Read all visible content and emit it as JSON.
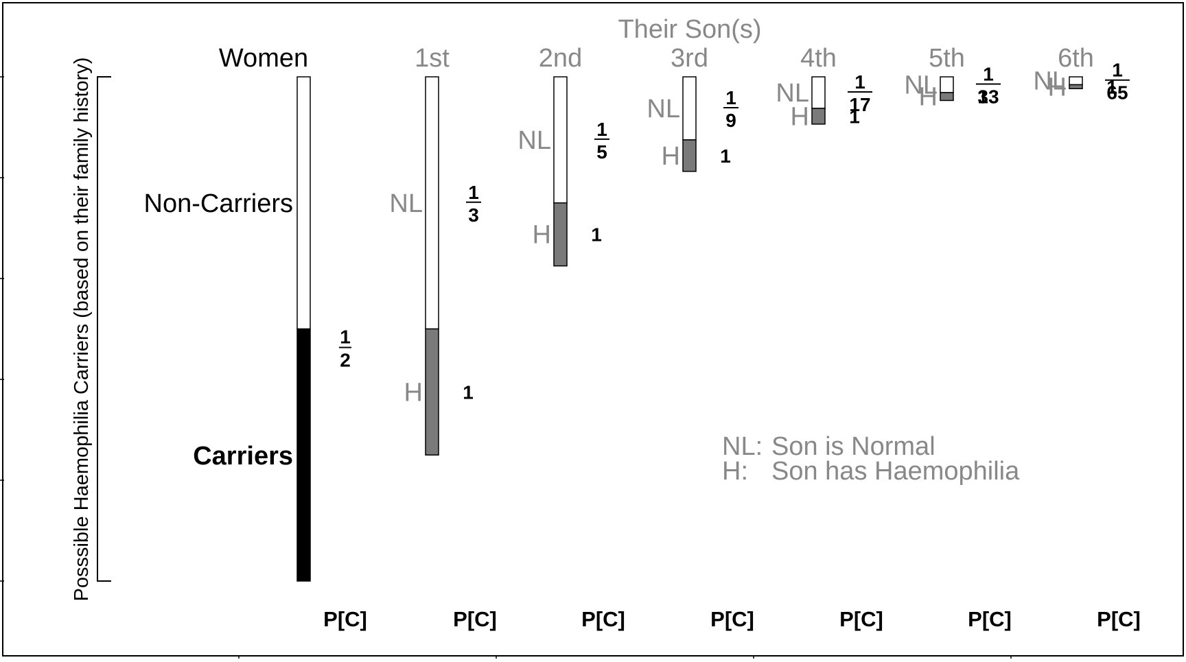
{
  "title": "Their Son(s)",
  "y_axis_label": "Posssible Haemophilia Carriers (based on their family history)",
  "women": {
    "label": "Women",
    "non_carriers_label": "Non-Carriers",
    "carriers_label": "Carriers",
    "carrier_fraction": 0.5,
    "carrier_fraction_label": {
      "num": "1",
      "den": "2"
    },
    "pc_label": "P[C]"
  },
  "sons": [
    {
      "label": "1st",
      "nl_fraction": 0.5,
      "h_fraction": 0.25,
      "pc": {
        "num": "1",
        "den": "3"
      },
      "h_pc": "1",
      "pc_label": "P[C]"
    },
    {
      "label": "2nd",
      "nl_fraction": 0.25,
      "h_fraction": 0.125,
      "pc": {
        "num": "1",
        "den": "5"
      },
      "h_pc": "1",
      "pc_label": "P[C]"
    },
    {
      "label": "3rd",
      "nl_fraction": 0.125,
      "h_fraction": 0.0625,
      "pc": {
        "num": "1",
        "den": "9"
      },
      "h_pc": "1",
      "pc_label": "P[C]"
    },
    {
      "label": "4th",
      "nl_fraction": 0.0625,
      "h_fraction": 0.03125,
      "pc": {
        "num": "1",
        "den": "17"
      },
      "h_pc": "1",
      "pc_label": "P[C]"
    },
    {
      "label": "5th",
      "nl_fraction": 0.03125,
      "h_fraction": 0.015625,
      "pc": {
        "num": "1",
        "den": "33"
      },
      "h_pc": "1",
      "pc_label": "P[C]"
    },
    {
      "label": "6th",
      "nl_fraction": 0.015625,
      "h_fraction": 0.0078125,
      "pc": {
        "num": "1",
        "den": "65"
      },
      "h_pc": "1",
      "pc_label": "P[C]"
    }
  ],
  "nl_label": "NL",
  "h_label": "H",
  "legend": {
    "nl_key": "NL:",
    "nl_text": "Son is Normal",
    "h_key": "H:",
    "h_text": "Son has Haemophilia"
  },
  "colors": {
    "carrier": "#000000",
    "haemophilia": "#7a7a7a",
    "normal": "#ffffff",
    "muted_text": "#888888",
    "frame": "#000000"
  }
}
